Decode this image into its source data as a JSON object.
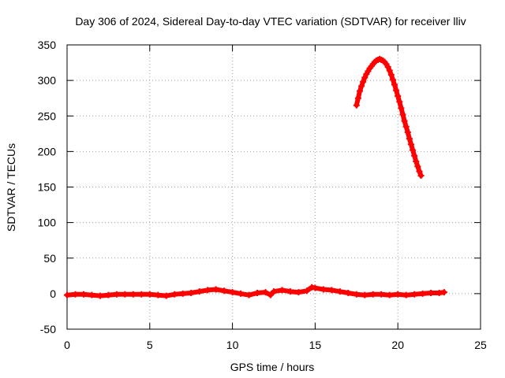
{
  "chart_data": {
    "type": "scatter",
    "title": "Day 306 of 2024, Sidereal Day-to-day VTEC variation (SDTVAR) for receiver lliv",
    "xlabel": "GPS time / hours",
    "ylabel": "SDTVAR / TECUs",
    "xlim": [
      0,
      25
    ],
    "ylim": [
      -50,
      350
    ],
    "xticks": [
      0,
      5,
      10,
      15,
      20,
      25
    ],
    "yticks": [
      -50,
      0,
      50,
      100,
      150,
      200,
      250,
      300,
      350
    ],
    "grid": true,
    "marker": "plus",
    "color": "#ff0000",
    "series": [
      {
        "points": [
          [
            0.0,
            -2
          ],
          [
            0.5,
            -1
          ],
          [
            1.0,
            -1
          ],
          [
            1.5,
            -2
          ],
          [
            2.0,
            -3
          ],
          [
            2.5,
            -2
          ],
          [
            3.0,
            -1
          ],
          [
            3.5,
            -1
          ],
          [
            4.0,
            -1
          ],
          [
            4.5,
            -1
          ],
          [
            5.0,
            -1
          ],
          [
            5.5,
            -2
          ],
          [
            6.0,
            -3
          ],
          [
            6.5,
            -1
          ],
          [
            7.0,
            0
          ],
          [
            7.5,
            1
          ],
          [
            8.0,
            3
          ],
          [
            8.5,
            5
          ],
          [
            9.0,
            6
          ],
          [
            9.5,
            4
          ],
          [
            10.0,
            2
          ],
          [
            10.5,
            0
          ],
          [
            11.0,
            -2
          ],
          [
            11.5,
            1
          ],
          [
            12.0,
            2
          ],
          [
            12.3,
            -2
          ],
          [
            12.5,
            3
          ],
          [
            13.0,
            5
          ],
          [
            13.5,
            3
          ],
          [
            14.0,
            2
          ],
          [
            14.5,
            4
          ],
          [
            14.8,
            9
          ],
          [
            15.0,
            8
          ],
          [
            15.5,
            6
          ],
          [
            16.0,
            5
          ],
          [
            16.5,
            3
          ],
          [
            17.0,
            1
          ],
          [
            17.5,
            -1
          ],
          [
            18.0,
            -2
          ],
          [
            18.5,
            -1
          ],
          [
            19.0,
            -1
          ],
          [
            19.5,
            -2
          ],
          [
            20.0,
            -1
          ],
          [
            20.5,
            -2
          ],
          [
            21.0,
            -1
          ],
          [
            21.5,
            0
          ],
          [
            22.0,
            1
          ],
          [
            22.5,
            1
          ],
          [
            22.8,
            2
          ]
        ]
      },
      {
        "points": [
          [
            17.5,
            265
          ],
          [
            17.6,
            275
          ],
          [
            17.7,
            285
          ],
          [
            17.8,
            292
          ],
          [
            17.9,
            298
          ],
          [
            18.0,
            304
          ],
          [
            18.1,
            309
          ],
          [
            18.2,
            313
          ],
          [
            18.3,
            317
          ],
          [
            18.4,
            320
          ],
          [
            18.5,
            323
          ],
          [
            18.6,
            326
          ],
          [
            18.7,
            328
          ],
          [
            18.8,
            329
          ],
          [
            18.9,
            330
          ],
          [
            19.0,
            329
          ],
          [
            19.1,
            328
          ],
          [
            19.2,
            326
          ],
          [
            19.3,
            323
          ],
          [
            19.4,
            319
          ],
          [
            19.5,
            314
          ],
          [
            19.6,
            308
          ],
          [
            19.7,
            301
          ],
          [
            19.8,
            294
          ],
          [
            19.9,
            286
          ],
          [
            20.0,
            278
          ],
          [
            20.1,
            270
          ],
          [
            20.2,
            261
          ],
          [
            20.3,
            252
          ],
          [
            20.4,
            243
          ],
          [
            20.5,
            235
          ],
          [
            20.6,
            227
          ],
          [
            20.7,
            218
          ],
          [
            20.8,
            210
          ],
          [
            20.9,
            202
          ],
          [
            21.0,
            194
          ],
          [
            21.1,
            186
          ],
          [
            21.2,
            179
          ],
          [
            21.3,
            172
          ],
          [
            21.4,
            166
          ]
        ]
      }
    ]
  }
}
